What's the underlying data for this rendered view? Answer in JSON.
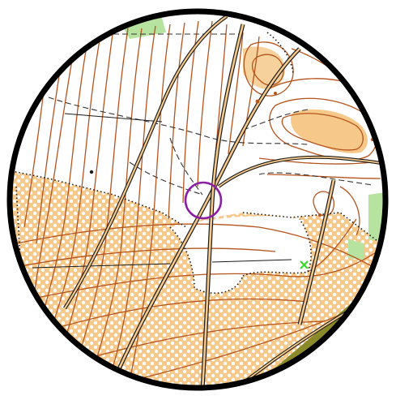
{
  "map": {
    "type": "orienteering-map-excerpt",
    "frame": "circular",
    "control_marker": {
      "shape": "circle",
      "color": "#8a1fa3"
    },
    "colors": {
      "contour": "#b5531c",
      "open_land_yellow": "#f6c98a",
      "rough_open_dots": "#ffffff",
      "green_vegetation": "#b7e3a0",
      "olive_area": "#8a8a2a",
      "track_black": "#1a1a1a",
      "path_dash": "#333333",
      "frame_ring": "#000000",
      "marker_green_x": "#3adb2b"
    },
    "features": [
      "contour-lines",
      "tracks",
      "dashed-paths",
      "vegetation-boundaries",
      "open-land",
      "control-circle",
      "special-object-x"
    ]
  }
}
